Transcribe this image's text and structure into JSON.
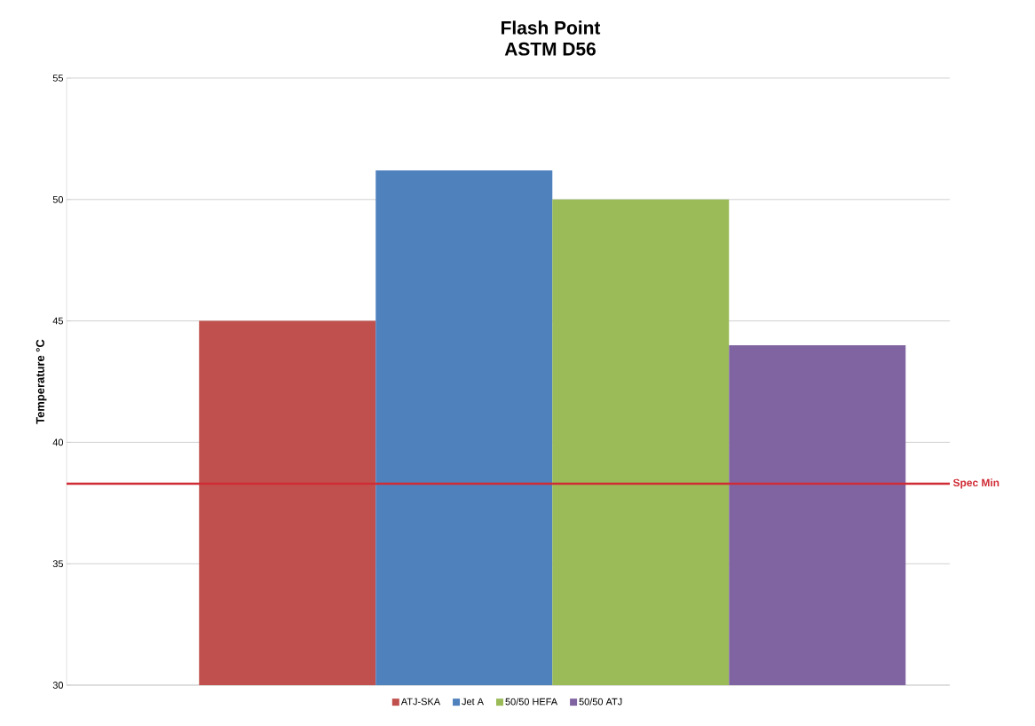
{
  "chart_data": {
    "type": "bar",
    "title": "Flash Point",
    "subtitle": "ASTM D56",
    "ylabel": "Temperature °C",
    "categories": [
      null
    ],
    "series": [
      {
        "name": "ATJ-SKA",
        "color": "#c0504d",
        "values": [
          45
        ]
      },
      {
        "name": "Jet A",
        "color": "#4f81bd",
        "values": [
          51.2
        ]
      },
      {
        "name": "50/50 HEFA",
        "color": "#9bbb59",
        "values": [
          50
        ]
      },
      {
        "name": "50/50 ATJ",
        "color": "#8064a2",
        "values": [
          44
        ]
      }
    ],
    "ylim": [
      30,
      55
    ],
    "yticks": [
      30,
      35,
      40,
      45,
      50,
      55
    ],
    "ref_lines": [
      {
        "axis": "y",
        "value": 38.3,
        "label": "Spec Min",
        "color": "#d02c36"
      }
    ],
    "grid": "y",
    "legend": "bottom",
    "tick_labels": "y"
  }
}
